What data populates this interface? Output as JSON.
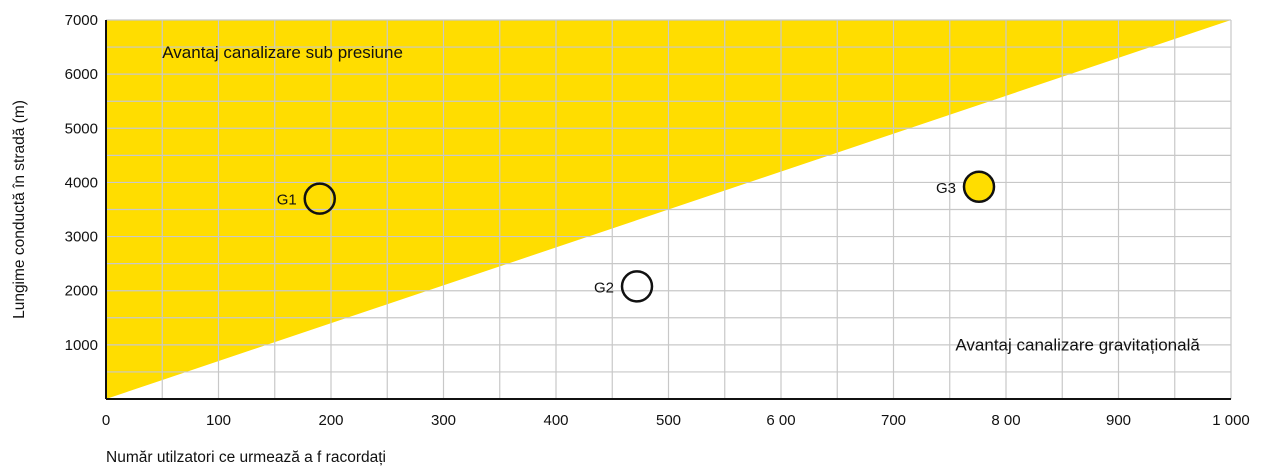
{
  "chart_data": {
    "type": "scatter",
    "xlabel": "Număr utilzatori ce urmează a f racordați",
    "ylabel": "Lungime conductă în stradă (m)",
    "xlim": [
      0,
      1000
    ],
    "ylim": [
      0,
      7000
    ],
    "x_ticks": [
      {
        "value": 0,
        "label": "0"
      },
      {
        "value": 100,
        "label": "100"
      },
      {
        "value": 200,
        "label": "200"
      },
      {
        "value": 300,
        "label": "300"
      },
      {
        "value": 400,
        "label": "400"
      },
      {
        "value": 500,
        "label": "500"
      },
      {
        "value": 600,
        "label": "6 00"
      },
      {
        "value": 700,
        "label": "700"
      },
      {
        "value": 800,
        "label": "8 00"
      },
      {
        "value": 900,
        "label": "900"
      },
      {
        "value": 1000,
        "label": "1 000"
      }
    ],
    "y_ticks": [
      {
        "value": 1000,
        "label": "1000"
      },
      {
        "value": 2000,
        "label": "2000"
      },
      {
        "value": 3000,
        "label": "3000"
      },
      {
        "value": 4000,
        "label": "4000"
      },
      {
        "value": 5000,
        "label": "5000"
      },
      {
        "value": 6000,
        "label": "6000"
      },
      {
        "value": 7000,
        "label": "7000"
      }
    ],
    "grid": true,
    "grid_step_x": 50,
    "grid_step_y": 500,
    "boundary_line": {
      "from": [
        0,
        0
      ],
      "to": [
        1000,
        7000
      ]
    },
    "regions": [
      {
        "label": "Avantaj canalizare sub presiune",
        "color": "#ffdd00",
        "anchor_x": 50,
        "anchor_y": 6300
      },
      {
        "label": "Avantaj canalizare gravitațională",
        "color": "#ffffff",
        "anchor_x": 755,
        "anchor_y": 900
      }
    ],
    "points": [
      {
        "label": "G1",
        "x": 190,
        "y": 3700,
        "fill": "none"
      },
      {
        "label": "G2",
        "x": 472,
        "y": 2080,
        "fill": "none"
      },
      {
        "label": "G3",
        "x": 776,
        "y": 3920,
        "fill": "#ffdd00"
      }
    ],
    "colors": {
      "advantage_pressure": "#ffdd00",
      "gridline": "#c8c8c8",
      "axis": "#111111"
    }
  }
}
